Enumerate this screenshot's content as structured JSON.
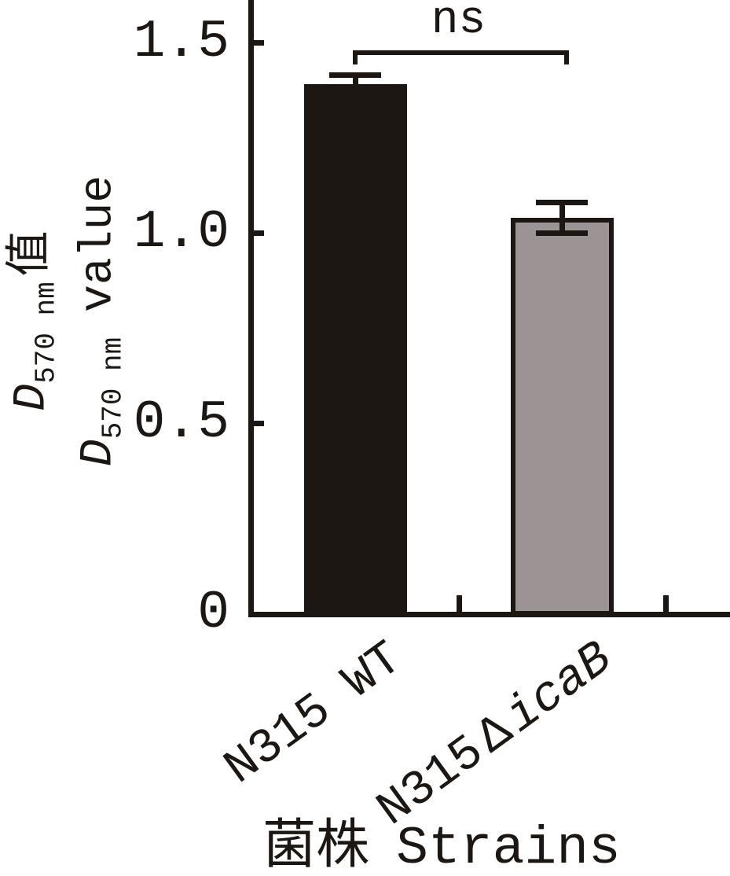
{
  "chart_data": {
    "type": "bar",
    "categories": [
      "N315 WT",
      "N315ΔicaB"
    ],
    "values": [
      1.39,
      1.04
    ],
    "errors": [
      0.025,
      0.04
    ],
    "bar_colors": [
      "#1c1712",
      "#9b9394"
    ],
    "bar_border_color": "#1c1712",
    "title": "",
    "xlabel": "菌株 Strains",
    "ylabel": "D570 nm值 / D570 nm value",
    "ylim": [
      0,
      1.61
    ],
    "yticks": [
      0,
      0.5,
      1.0,
      1.5
    ],
    "ytick_labels": [
      "0",
      "0.5",
      "1.0",
      "1.5"
    ],
    "grid": false,
    "legend": false,
    "significance": {
      "label": "ns",
      "pair": [
        0,
        1
      ],
      "y": 1.48
    }
  },
  "colors": {
    "ink": "#1c1712",
    "background": "#ffffff",
    "bar_black": "#1c1712",
    "bar_gray": "#9b9394"
  },
  "y_axis": {
    "label_cn": {
      "symbol": "D",
      "subscript": "570 nm",
      "text": "值"
    },
    "label_en": {
      "symbol": "D",
      "subscript": "570 nm",
      "text": "value"
    }
  },
  "x_axis": {
    "labels": [
      {
        "text": "N315 WT"
      },
      {
        "prefix": "N315",
        "delta": "Δ",
        "gene": "icaB"
      }
    ],
    "title_cn": "菌株",
    "title_en": "Strains"
  }
}
